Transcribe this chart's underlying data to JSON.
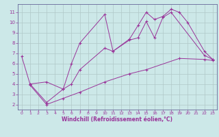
{
  "xlabel": "Windchill (Refroidissement éolien,°C)",
  "bg_color": "#cce8e8",
  "grid_color": "#b0c8c8",
  "line_color": "#993399",
  "spine_color": "#666699",
  "xlim": [
    -0.5,
    23.5
  ],
  "ylim": [
    1.5,
    11.8
  ],
  "xticks": [
    0,
    1,
    2,
    3,
    4,
    5,
    6,
    7,
    8,
    9,
    10,
    11,
    12,
    13,
    14,
    15,
    16,
    17,
    18,
    19,
    20,
    21,
    22,
    23
  ],
  "yticks": [
    2,
    3,
    4,
    5,
    6,
    7,
    8,
    9,
    10,
    11
  ],
  "line1_x": [
    0,
    1,
    3,
    5,
    6,
    7,
    10,
    11,
    13,
    14,
    15,
    16,
    17,
    18,
    19,
    20,
    22,
    23
  ],
  "line1_y": [
    6.7,
    4.0,
    4.2,
    3.5,
    6.0,
    8.0,
    10.8,
    7.2,
    8.4,
    9.7,
    11.0,
    10.3,
    10.6,
    11.3,
    11.0,
    10.0,
    7.2,
    6.4
  ],
  "line2_x": [
    1,
    3,
    5,
    6,
    7,
    10,
    11,
    13,
    14,
    15,
    16,
    17,
    18,
    22,
    23
  ],
  "line2_y": [
    4.0,
    2.2,
    3.5,
    4.0,
    5.4,
    7.5,
    7.2,
    8.3,
    8.5,
    10.1,
    8.5,
    10.5,
    11.0,
    6.8,
    6.4
  ],
  "line3_x": [
    1,
    3,
    5,
    7,
    10,
    13,
    15,
    19,
    22,
    23
  ],
  "line3_y": [
    3.9,
    2.0,
    2.6,
    3.2,
    4.2,
    5.0,
    5.4,
    6.5,
    6.4,
    6.3
  ]
}
